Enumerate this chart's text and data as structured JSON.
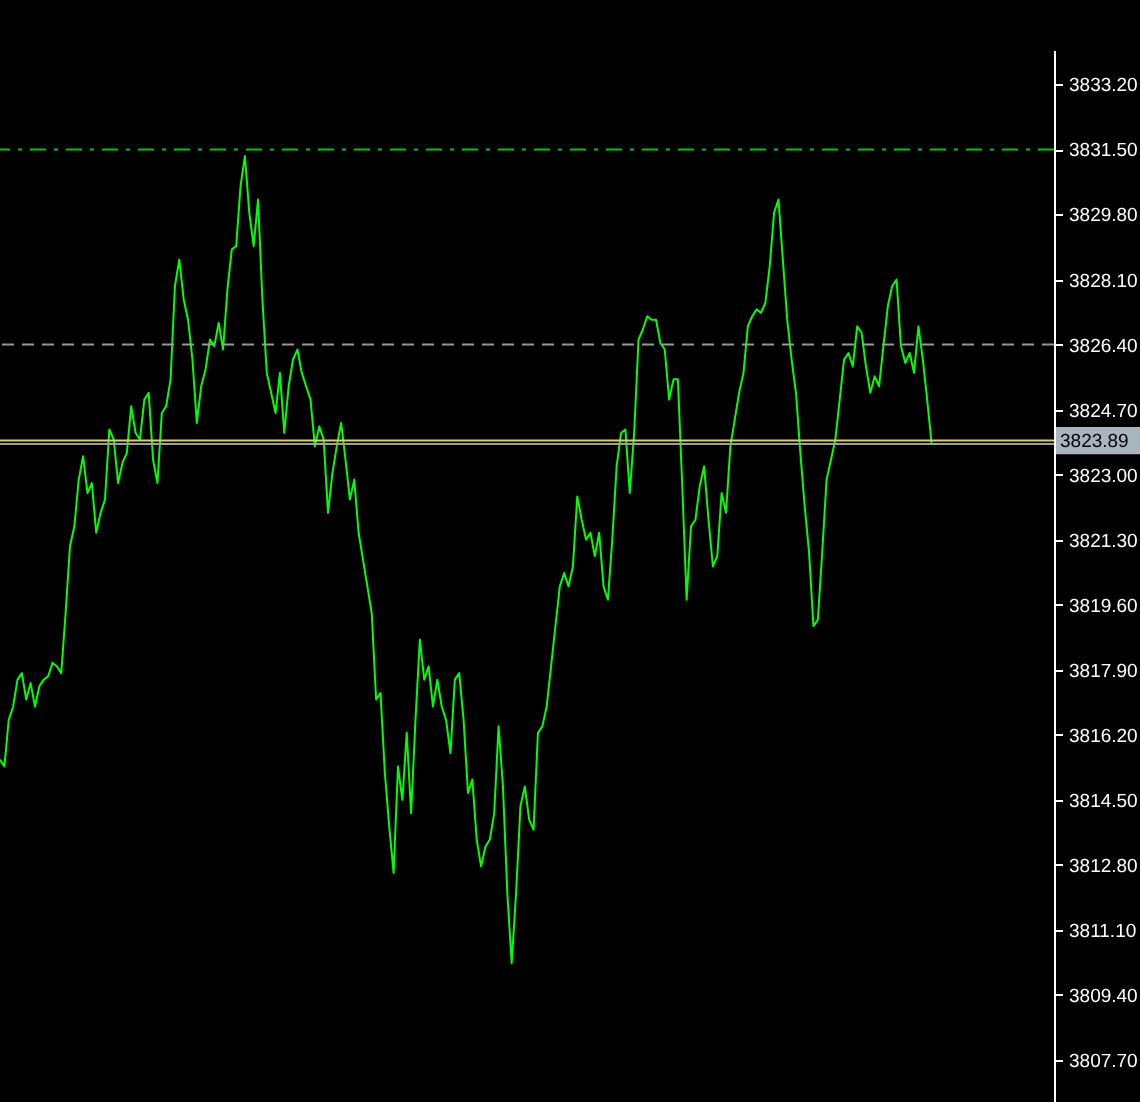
{
  "chart_data": {
    "type": "line",
    "categories": [
      null,
      null,
      null,
      null,
      null,
      null,
      null,
      null,
      null,
      null,
      null,
      null,
      null,
      null,
      null,
      null,
      null,
      null,
      null,
      null,
      null,
      null,
      null,
      null,
      null,
      null,
      null,
      null,
      null,
      null,
      null,
      null,
      null,
      null,
      null,
      null,
      null,
      null,
      null,
      null,
      null,
      null,
      null,
      null,
      null,
      null,
      null,
      null,
      null,
      null,
      null,
      null,
      null,
      null,
      null,
      null,
      null,
      null,
      null,
      null,
      null,
      null,
      null,
      null,
      null,
      null,
      null,
      null,
      null,
      null,
      null,
      null,
      null,
      null,
      null,
      null,
      null,
      null,
      null,
      null,
      null,
      null,
      null,
      null,
      null,
      null,
      null,
      null,
      null,
      null,
      null,
      null,
      null,
      null,
      null,
      null,
      null,
      null,
      null,
      null,
      null,
      null,
      null,
      null,
      null,
      null,
      null,
      null,
      null,
      null,
      null,
      null,
      null,
      null,
      null,
      null,
      null,
      null,
      null,
      null,
      null,
      null,
      null,
      null,
      null,
      null,
      null,
      null,
      null,
      null,
      null,
      null,
      null,
      null,
      null,
      null,
      null,
      null,
      null,
      null,
      null,
      null,
      null,
      null,
      null,
      null,
      null,
      null,
      null,
      null,
      null,
      null,
      null,
      null,
      null,
      null,
      null,
      null,
      null,
      null,
      null,
      null,
      null,
      null,
      null,
      null,
      null,
      null,
      null,
      null,
      null,
      null,
      null,
      null,
      null,
      null,
      null,
      null,
      null,
      null,
      null,
      null,
      null,
      null,
      null,
      null,
      null,
      null,
      null,
      null,
      null,
      null,
      null,
      null,
      null,
      null,
      null,
      null,
      null,
      null,
      null,
      null,
      null,
      null,
      null,
      null,
      null,
      null,
      null,
      null,
      null,
      null,
      null,
      null,
      null,
      null,
      null,
      null,
      null,
      null,
      null,
      null,
      null,
      null,
      null,
      null,
      null,
      null,
      null,
      null,
      null,
      null,
      null,
      null,
      null,
      null,
      null,
      null,
      null,
      null,
      null,
      null
    ],
    "series": [
      {
        "color": "#00ff00",
        "values": [
          3815.55,
          3815.37,
          3816.59,
          3816.94,
          3817.64,
          3817.81,
          3817.12,
          3817.55,
          3816.94,
          3817.47,
          3817.64,
          3817.73,
          3818.08,
          3817.99,
          3817.81,
          3819.38,
          3821.13,
          3821.65,
          3822.87,
          3823.48,
          3822.52,
          3822.78,
          3821.48,
          3822.0,
          3822.35,
          3824.18,
          3823.92,
          3822.78,
          3823.31,
          3823.57,
          3824.79,
          3824.09,
          3823.92,
          3824.96,
          3825.14,
          3823.39,
          3822.78,
          3824.61,
          3824.79,
          3825.49,
          3827.93,
          3828.62,
          3827.58,
          3827.05,
          3826.01,
          3824.35,
          3825.31,
          3825.75,
          3826.53,
          3826.36,
          3826.97,
          3826.27,
          3827.84,
          3828.89,
          3828.97,
          3830.54,
          3831.33,
          3829.85,
          3828.97,
          3830.19,
          3827.58,
          3825.66,
          3825.14,
          3824.61,
          3825.66,
          3824.09,
          3825.31,
          3826.01,
          3826.27,
          3825.66,
          3825.31,
          3824.96,
          3823.74,
          3824.26,
          3823.92,
          3822.0,
          3823.04,
          3823.74,
          3824.35,
          3823.39,
          3822.35,
          3822.87,
          3821.48,
          3820.78,
          3820.08,
          3819.38,
          3817.12,
          3817.29,
          3815.2,
          3813.8,
          3812.59,
          3815.37,
          3814.5,
          3816.25,
          3814.15,
          3816.59,
          3818.69,
          3817.64,
          3817.99,
          3816.94,
          3817.64,
          3816.94,
          3816.59,
          3815.72,
          3817.64,
          3817.81,
          3816.59,
          3814.68,
          3815.03,
          3813.46,
          3812.76,
          3813.28,
          3813.46,
          3814.15,
          3816.42,
          3814.85,
          3812.06,
          3810.23,
          3812.06,
          3814.33,
          3814.85,
          3813.98,
          3813.72,
          3816.25,
          3816.42,
          3816.94,
          3817.99,
          3819.04,
          3820.08,
          3820.43,
          3820.08,
          3820.6,
          3822.43,
          3821.82,
          3821.3,
          3821.48,
          3820.87,
          3821.48,
          3820.08,
          3819.73,
          3821.3,
          3823.22,
          3824.09,
          3824.18,
          3822.52,
          3824.09,
          3826.53,
          3826.8,
          3827.14,
          3827.05,
          3827.05,
          3826.44,
          3826.27,
          3824.96,
          3825.49,
          3825.49,
          3822.7,
          3819.73,
          3821.65,
          3821.82,
          3822.7,
          3823.22,
          3821.82,
          3820.6,
          3820.87,
          3822.52,
          3822.0,
          3823.74,
          3824.44,
          3825.14,
          3825.66,
          3826.88,
          3827.14,
          3827.32,
          3827.23,
          3827.49,
          3828.45,
          3829.85,
          3830.19,
          3828.62,
          3827.05,
          3826.01,
          3825.14,
          3823.57,
          3822.17,
          3820.96,
          3819.04,
          3819.21,
          3820.96,
          3822.87,
          3823.39,
          3823.92,
          3824.96,
          3826.01,
          3826.18,
          3825.83,
          3826.88,
          3826.71,
          3825.83,
          3825.14,
          3825.57,
          3825.31,
          3826.36,
          3827.4,
          3827.93,
          3828.1,
          3826.36,
          3825.92,
          3826.18,
          3825.66,
          3826.88,
          3826.01,
          3824.96,
          3823.83,
          null,
          null,
          null,
          null,
          null,
          null,
          null,
          null,
          null,
          null,
          null,
          null,
          null,
          null,
          null,
          null,
          null,
          null,
          null,
          null,
          null,
          null,
          null,
          null,
          null,
          null,
          null,
          null
        ]
      }
    ],
    "ylim": [
      3806.6,
      3834.1
    ],
    "yticks": [
      {
        "value": 3833.2,
        "label": "3833.20"
      },
      {
        "value": 3831.5,
        "label": "3831.50"
      },
      {
        "value": 3829.8,
        "label": "3829.80"
      },
      {
        "value": 3828.1,
        "label": "3828.10"
      },
      {
        "value": 3826.4,
        "label": "3826.40"
      },
      {
        "value": 3824.7,
        "label": "3824.70"
      },
      {
        "value": 3823.0,
        "label": "3823.00"
      },
      {
        "value": 3821.3,
        "label": "3821.30"
      },
      {
        "value": 3819.6,
        "label": "3819.60"
      },
      {
        "value": 3817.9,
        "label": "3817.90"
      },
      {
        "value": 3816.2,
        "label": "3816.20"
      },
      {
        "value": 3814.5,
        "label": "3814.50"
      },
      {
        "value": 3812.8,
        "label": "3812.80"
      },
      {
        "value": 3811.1,
        "label": "3811.10"
      },
      {
        "value": 3809.4,
        "label": "3809.40"
      },
      {
        "value": 3807.7,
        "label": "3807.70"
      }
    ],
    "ref_lines": [
      {
        "axis": "y",
        "value": 3831.5,
        "color": "#00c800",
        "line_style": "dashdot"
      },
      {
        "axis": "y",
        "value": 3826.4,
        "color": "#9a9a9a",
        "line_style": "dashed"
      },
      {
        "axis": "y",
        "value": 3823.8,
        "color": "#a0a0a0",
        "line_style": "solid"
      },
      {
        "axis": "y",
        "value": 3823.89,
        "label": "3823.89",
        "color": "#d8d070",
        "line_style": "solid"
      }
    ],
    "tick_labels": "y",
    "grid": false,
    "line_style": "solid",
    "marker": "none"
  }
}
